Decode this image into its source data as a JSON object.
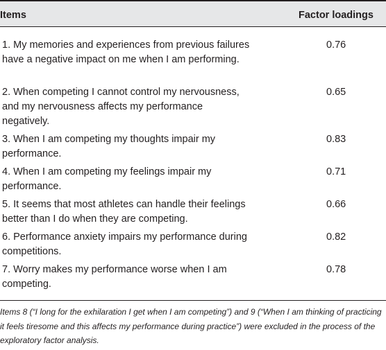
{
  "table": {
    "header": {
      "items": "Items",
      "factor_loadings": "Factor loadings"
    },
    "rows": [
      {
        "item": "1. My memories and experiences from previous failures have a negative impact on me when I am performing.",
        "loading": "0.76"
      },
      {
        "item": "2. When competing I cannot control my nervousness, and my nervousness affects my performance negatively.",
        "loading": "0.65"
      },
      {
        "item": "3. When I am competing my thoughts impair my performance.",
        "loading": "0.83"
      },
      {
        "item": "4. When I am competing my feelings impair my performance.",
        "loading": "0.71"
      },
      {
        "item": "5. It seems that most athletes can handle their feelings better than I do when they are competing.",
        "loading": "0.66"
      },
      {
        "item": "6. Performance anxiety impairs my performance during competitions.",
        "loading": "0.82"
      },
      {
        "item": "7. Worry makes my performance worse when I am competing.",
        "loading": "0.78"
      }
    ],
    "footnote": "Items 8 (“I long for the exhilaration I get when I am competing”) and 9 (“When I am thinking of practicing it feels tiresome and this affects my performance during practice”) were excluded in the process of the exploratory factor analysis."
  }
}
